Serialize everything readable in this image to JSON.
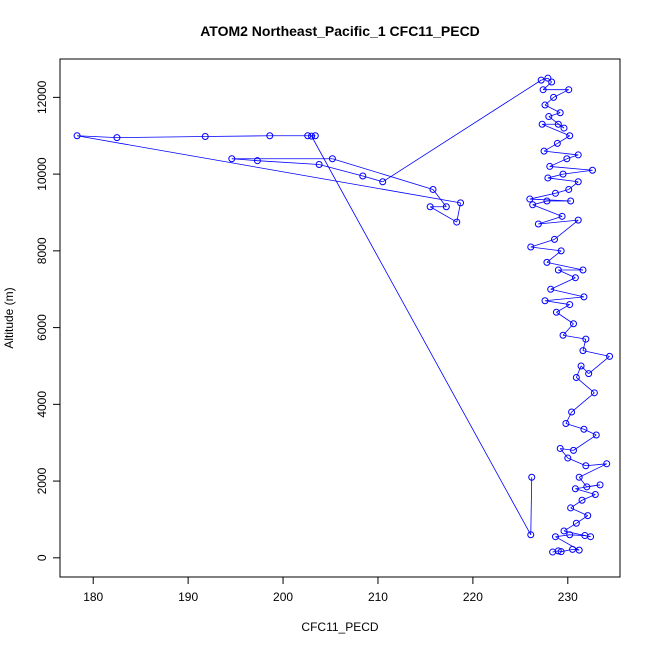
{
  "chart_data": {
    "type": "line",
    "title": "ATOM2 Northeast_Pacific_1 CFC11_PECD",
    "xlabel": "CFC11_PECD",
    "ylabel": "Altitude (m)",
    "xlim": [
      176.5,
      235.5
    ],
    "ylim": [
      -500,
      13000
    ],
    "xticks": [
      180,
      190,
      200,
      210,
      220,
      230
    ],
    "yticks": [
      0,
      2000,
      4000,
      6000,
      8000,
      10000,
      12000
    ],
    "grid": false,
    "legend": "none",
    "series": [
      {
        "color": "#0000ff",
        "marker": "open-circle",
        "points": [
          [
            228.4,
            150
          ],
          [
            229.0,
            180
          ],
          [
            229.3,
            160
          ],
          [
            230.5,
            220
          ],
          [
            231.2,
            200
          ],
          [
            228.7,
            550
          ],
          [
            230.2,
            600
          ],
          [
            231.8,
            580
          ],
          [
            232.4,
            550
          ],
          [
            229.6,
            700
          ],
          [
            230.9,
            900
          ],
          [
            232.1,
            1100
          ],
          [
            230.3,
            1300
          ],
          [
            231.5,
            1500
          ],
          [
            232.9,
            1650
          ],
          [
            230.8,
            1800
          ],
          [
            233.4,
            1900
          ],
          [
            232.0,
            1850
          ],
          [
            231.2,
            2100
          ],
          [
            234.1,
            2450
          ],
          [
            231.9,
            2400
          ],
          [
            230.0,
            2600
          ],
          [
            229.2,
            2850
          ],
          [
            230.6,
            2800
          ],
          [
            233.0,
            3200
          ],
          [
            231.7,
            3350
          ],
          [
            229.8,
            3500
          ],
          [
            230.4,
            3800
          ],
          [
            232.8,
            4300
          ],
          [
            230.9,
            4700
          ],
          [
            231.4,
            5000
          ],
          [
            232.2,
            4800
          ],
          [
            234.4,
            5250
          ],
          [
            231.6,
            5400
          ],
          [
            231.9,
            5700
          ],
          [
            229.5,
            5800
          ],
          [
            230.6,
            6100
          ],
          [
            228.8,
            6400
          ],
          [
            230.2,
            6600
          ],
          [
            227.6,
            6700
          ],
          [
            231.7,
            6800
          ],
          [
            228.2,
            7000
          ],
          [
            230.8,
            7300
          ],
          [
            229.0,
            7500
          ],
          [
            231.6,
            7500
          ],
          [
            227.8,
            7700
          ],
          [
            229.3,
            8000
          ],
          [
            226.1,
            8100
          ],
          [
            228.6,
            8300
          ],
          [
            231.1,
            8800
          ],
          [
            226.9,
            8700
          ],
          [
            229.4,
            8900
          ],
          [
            226.3,
            9200
          ],
          [
            227.8,
            9300
          ],
          [
            230.3,
            9300
          ],
          [
            226.0,
            9350
          ],
          [
            228.7,
            9500
          ],
          [
            230.1,
            9600
          ],
          [
            231.1,
            9800
          ],
          [
            227.9,
            9900
          ],
          [
            229.5,
            10000
          ],
          [
            232.6,
            10100
          ],
          [
            228.1,
            10200
          ],
          [
            229.9,
            10400
          ],
          [
            231.1,
            10500
          ],
          [
            227.5,
            10600
          ],
          [
            228.9,
            10800
          ],
          [
            230.2,
            11000
          ],
          [
            227.3,
            11300
          ],
          [
            229.0,
            11300
          ],
          [
            229.6,
            11200
          ],
          [
            228.0,
            11500
          ],
          [
            229.2,
            11600
          ],
          [
            227.6,
            11800
          ],
          [
            228.5,
            12000
          ],
          [
            230.1,
            12200
          ],
          [
            227.4,
            12200
          ],
          [
            228.3,
            12400
          ],
          [
            227.9,
            12500
          ],
          [
            227.2,
            12450
          ],
          [
            210.5,
            9800
          ],
          [
            208.4,
            9950
          ],
          [
            203.8,
            10250
          ],
          [
            197.3,
            10350
          ],
          [
            194.6,
            10400
          ],
          [
            205.2,
            10400
          ],
          [
            215.8,
            9600
          ],
          [
            217.2,
            9150
          ],
          [
            215.5,
            9150
          ],
          [
            218.3,
            8750
          ],
          [
            218.7,
            9250
          ],
          [
            178.3,
            11000
          ],
          [
            182.5,
            10950
          ],
          [
            191.8,
            10980
          ],
          [
            198.6,
            11000
          ],
          [
            202.6,
            11000
          ],
          [
            203.4,
            11000
          ],
          [
            203.0,
            10990
          ],
          [
            226.1,
            600
          ],
          [
            226.2,
            2100
          ]
        ]
      }
    ]
  }
}
